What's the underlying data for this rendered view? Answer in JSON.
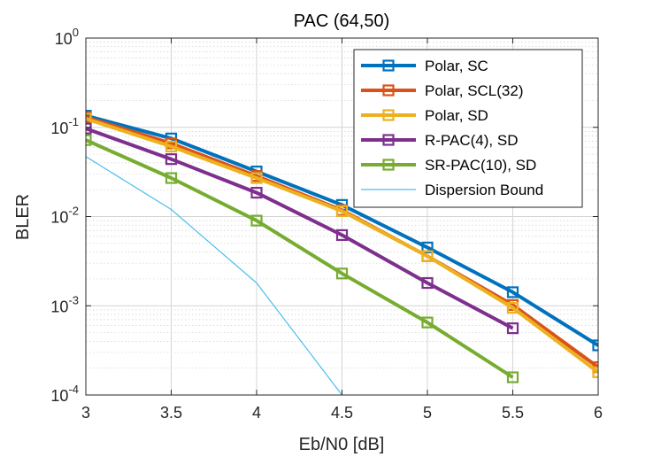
{
  "chart_data": {
    "type": "line",
    "title": "PAC (64,50)",
    "xlabel": "Eb/N0 [dB]",
    "ylabel": "BLER",
    "xlim": [
      3,
      6
    ],
    "ylim": [
      0.0001,
      1
    ],
    "yscale": "log",
    "grid": true,
    "minor_grid": true,
    "legend_position": "top-right",
    "x_ticks": [
      {
        "value": 3,
        "label": "3"
      },
      {
        "value": 3.5,
        "label": "3.5"
      },
      {
        "value": 4,
        "label": "4"
      },
      {
        "value": 4.5,
        "label": "4.5"
      },
      {
        "value": 5,
        "label": "5"
      },
      {
        "value": 5.5,
        "label": "5.5"
      },
      {
        "value": 6,
        "label": "6"
      }
    ],
    "y_ticks": [
      {
        "value": 1,
        "base": "10",
        "exp": "0"
      },
      {
        "value": 0.1,
        "base": "10",
        "exp": "-1"
      },
      {
        "value": 0.01,
        "base": "10",
        "exp": "-2"
      },
      {
        "value": 0.001,
        "base": "10",
        "exp": "-3"
      },
      {
        "value": 0.0001,
        "base": "10",
        "exp": "-4"
      }
    ],
    "series": [
      {
        "name": "Polar, SC",
        "color": "#0072BD",
        "marker": "square",
        "line": "thick",
        "x": [
          3,
          3.5,
          4,
          4.5,
          5,
          5.5,
          6
        ],
        "y": [
          0.135,
          0.075,
          0.032,
          0.0135,
          0.0045,
          0.00142,
          0.00036
        ]
      },
      {
        "name": "Polar, SCL(32)",
        "color": "#D95319",
        "marker": "square",
        "line": "thick",
        "x": [
          3,
          3.5,
          4,
          4.5,
          5,
          5.5,
          6
        ],
        "y": [
          0.13,
          0.066,
          0.0285,
          0.0118,
          0.0036,
          0.00102,
          0.000205
        ]
      },
      {
        "name": "Polar, SD",
        "color": "#EDB120",
        "marker": "square",
        "line": "thick",
        "x": [
          3,
          3.5,
          4,
          4.5,
          5,
          5.5,
          6
        ],
        "y": [
          0.125,
          0.061,
          0.027,
          0.0115,
          0.0036,
          0.00095,
          0.00018
        ]
      },
      {
        "name": "R-PAC(4), SD",
        "color": "#7E2F8E",
        "marker": "square",
        "line": "thick",
        "x": [
          3,
          3.5,
          4,
          4.5,
          5,
          5.5
        ],
        "y": [
          0.097,
          0.044,
          0.0185,
          0.0062,
          0.0018,
          0.00056
        ]
      },
      {
        "name": "SR-PAC(10), SD",
        "color": "#77AC30",
        "marker": "square",
        "line": "thick",
        "x": [
          3,
          3.5,
          4,
          4.5,
          5,
          5.5
        ],
        "y": [
          0.072,
          0.027,
          0.009,
          0.0023,
          0.00065,
          0.000158
        ]
      },
      {
        "name": "Dispersion Bound",
        "color": "#4DBEEE",
        "marker": "none",
        "line": "thin",
        "x": [
          3,
          3.5,
          4,
          4.5
        ],
        "y": [
          0.047,
          0.012,
          0.0018,
          0.0001
        ]
      }
    ]
  }
}
